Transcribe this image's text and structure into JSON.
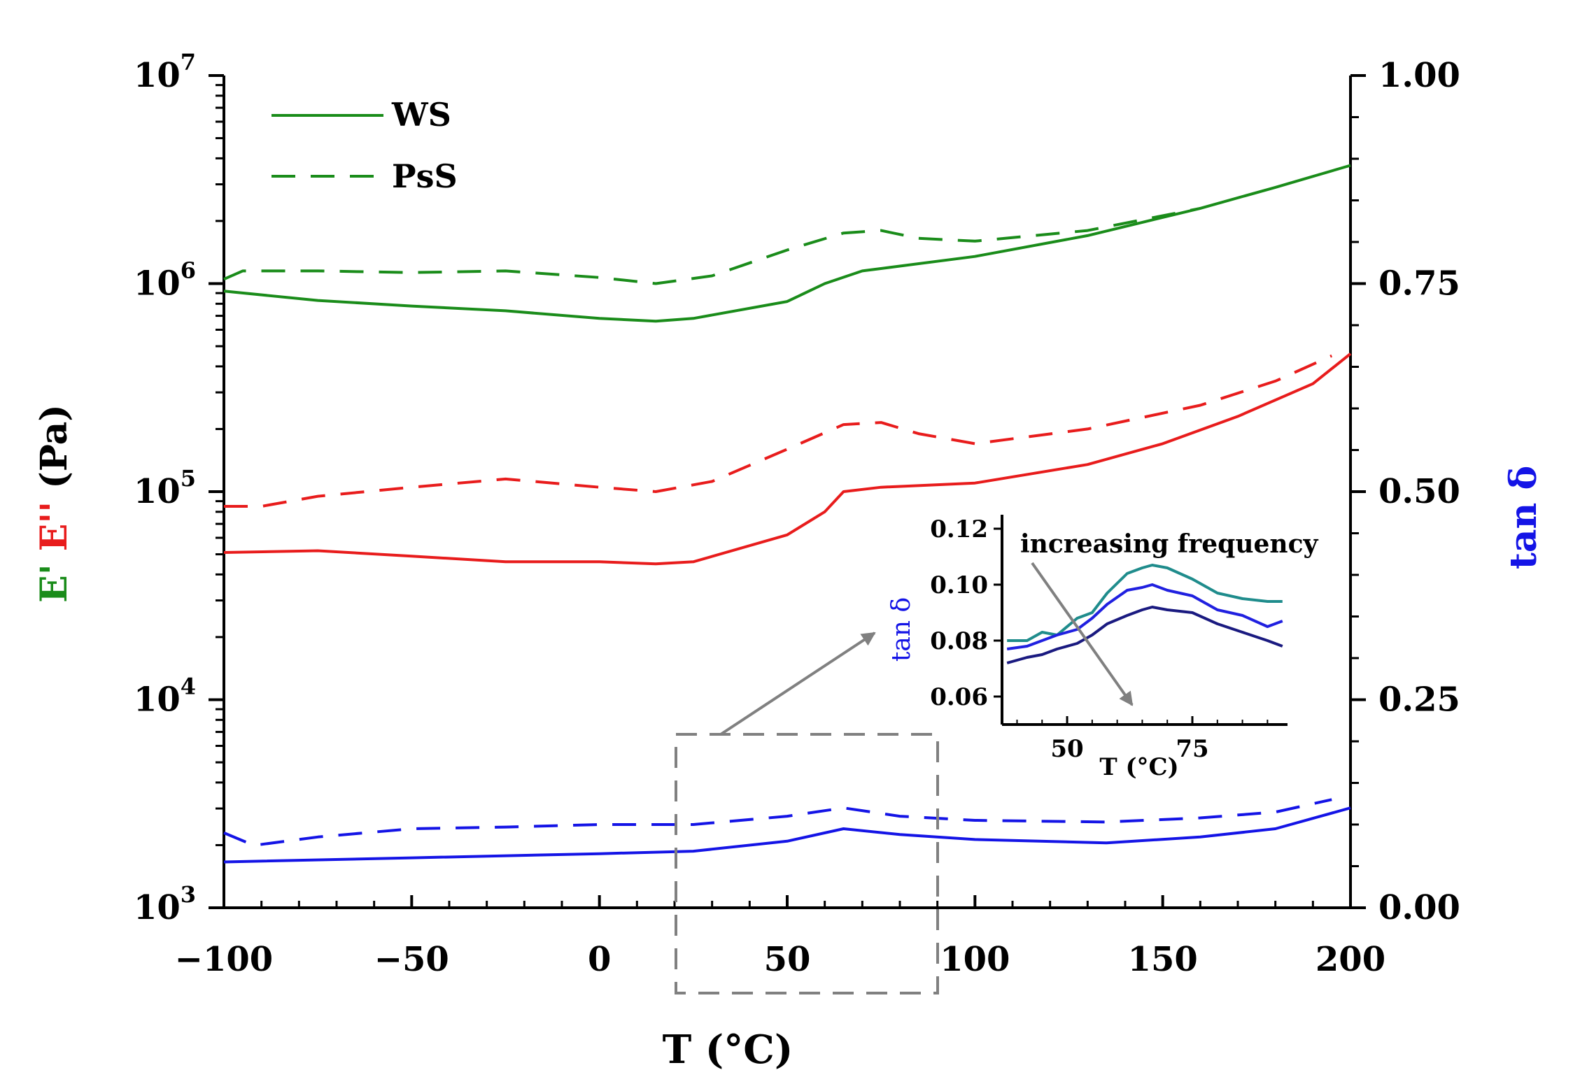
{
  "chart_data": [
    {
      "type": "line",
      "title": "",
      "xlabel": "T (°C)",
      "ylabel_left_parts": [
        {
          "text": "E'",
          "color": "#1a8c1a"
        },
        {
          "text": "E''",
          "color": "#e81c1c"
        },
        {
          "text": "(Pa)",
          "color": "#000000"
        }
      ],
      "ylabel_right": "tan δ",
      "xlim": [
        -100,
        200
      ],
      "xticks": [
        "−100",
        "−50",
        "0",
        "50",
        "100",
        "150",
        "200"
      ],
      "xtick_values": [
        -100,
        -50,
        0,
        50,
        100,
        150,
        200
      ],
      "ylim_left_log10": [
        3,
        7
      ],
      "yticks_left": [
        {
          "base": "10",
          "exp": "3",
          "log": 3
        },
        {
          "base": "10",
          "exp": "4",
          "log": 4
        },
        {
          "base": "10",
          "exp": "5",
          "log": 5
        },
        {
          "base": "10",
          "exp": "6",
          "log": 6
        },
        {
          "base": "10",
          "exp": "7",
          "log": 7
        }
      ],
      "ylim_right": [
        0,
        1
      ],
      "yticks_right": [
        "0.00",
        "0.25",
        "0.50",
        "0.75",
        "1.00"
      ],
      "ytick_right_values": [
        0,
        0.25,
        0.5,
        0.75,
        1.0
      ],
      "legend": [
        {
          "label": "WS",
          "style": "solid",
          "color": "#1a8c1a"
        },
        {
          "label": "PsS",
          "style": "dashed",
          "color": "#1a8c1a"
        }
      ],
      "legend_position": "top-left",
      "series": [
        {
          "name": "E' WS",
          "axis": "left",
          "color": "#1a8c1a",
          "style": "solid",
          "x": [
            -100,
            -75,
            -50,
            -25,
            0,
            15,
            25,
            50,
            60,
            70,
            100,
            130,
            160,
            180,
            200
          ],
          "y": [
            920000,
            830000,
            780000,
            740000,
            680000,
            660000,
            680000,
            820000,
            1000000,
            1150000,
            1350000,
            1700000,
            2300000,
            2900000,
            3700000
          ]
        },
        {
          "name": "E' PsS",
          "axis": "left",
          "color": "#1a8c1a",
          "style": "dashed",
          "x": [
            -100,
            -95,
            -75,
            -50,
            -25,
            0,
            15,
            30,
            50,
            65,
            75,
            85,
            100,
            130,
            160
          ],
          "y": [
            1050000,
            1150000,
            1150000,
            1130000,
            1150000,
            1070000,
            1000000,
            1090000,
            1450000,
            1750000,
            1800000,
            1650000,
            1600000,
            1800000,
            2300000
          ]
        },
        {
          "name": "E'' WS",
          "axis": "left",
          "color": "#e81c1c",
          "style": "solid",
          "x": [
            -100,
            -75,
            -50,
            -25,
            0,
            15,
            25,
            50,
            60,
            65,
            75,
            100,
            130,
            150,
            170,
            190,
            200
          ],
          "y": [
            51000,
            52000,
            49000,
            46000,
            46000,
            45000,
            46000,
            62000,
            80000,
            100000,
            105000,
            110000,
            135000,
            170000,
            230000,
            330000,
            460000
          ]
        },
        {
          "name": "E'' PsS",
          "axis": "left",
          "color": "#e81c1c",
          "style": "dashed",
          "x": [
            -100,
            -90,
            -75,
            -50,
            -25,
            0,
            15,
            30,
            50,
            65,
            75,
            85,
            100,
            130,
            160,
            180,
            195
          ],
          "y": [
            85000,
            85000,
            95000,
            105000,
            115000,
            105000,
            100000,
            112000,
            160000,
            210000,
            215000,
            190000,
            170000,
            200000,
            260000,
            340000,
            450000
          ]
        },
        {
          "name": "tan δ WS",
          "axis": "right",
          "color": "#1414e6",
          "style": "solid",
          "x": [
            -100,
            -50,
            0,
            25,
            50,
            65,
            80,
            100,
            135,
            160,
            180,
            200
          ],
          "y": [
            0.055,
            0.06,
            0.065,
            0.068,
            0.08,
            0.095,
            0.088,
            0.082,
            0.078,
            0.085,
            0.095,
            0.12
          ]
        },
        {
          "name": "tan δ PsS",
          "axis": "right",
          "color": "#1414e6",
          "style": "dashed",
          "x": [
            -100,
            -92,
            -75,
            -50,
            -25,
            0,
            25,
            50,
            65,
            80,
            100,
            135,
            160,
            180,
            195
          ],
          "y": [
            0.09,
            0.075,
            0.085,
            0.095,
            0.097,
            0.1,
            0.1,
            0.11,
            0.12,
            0.11,
            0.105,
            0.103,
            0.108,
            0.115,
            0.13
          ]
        }
      ],
      "highlight_region_label": "",
      "highlight_x_range": [
        20,
        90
      ]
    },
    {
      "type": "line",
      "title": "",
      "xlabel": "T (°C)",
      "ylabel": "tan δ",
      "annotation": "increasing frequency",
      "xlim": [
        37,
        94
      ],
      "xticks": [
        "50",
        "75"
      ],
      "xtick_values": [
        50,
        75
      ],
      "ylim": [
        0.05,
        0.125
      ],
      "yticks": [
        "0.06",
        "0.08",
        "0.10",
        "0.12"
      ],
      "ytick_values": [
        0.06,
        0.08,
        0.1,
        0.12
      ],
      "series": [
        {
          "name": "lowest frequency",
          "color": "#1f8c8c",
          "x": [
            38,
            42,
            45,
            48,
            52,
            55,
            58,
            62,
            65,
            67,
            70,
            75,
            80,
            85,
            90,
            93
          ],
          "y": [
            0.08,
            0.08,
            0.083,
            0.082,
            0.088,
            0.09,
            0.097,
            0.104,
            0.106,
            0.107,
            0.106,
            0.102,
            0.097,
            0.095,
            0.094,
            0.094
          ]
        },
        {
          "name": "middle frequency",
          "color": "#2020e0",
          "x": [
            38,
            42,
            45,
            48,
            52,
            55,
            58,
            62,
            65,
            67,
            70,
            75,
            80,
            85,
            90,
            93
          ],
          "y": [
            0.077,
            0.078,
            0.08,
            0.082,
            0.084,
            0.088,
            0.093,
            0.098,
            0.099,
            0.1,
            0.098,
            0.096,
            0.091,
            0.089,
            0.085,
            0.087
          ]
        },
        {
          "name": "highest frequency",
          "color": "#1a1a80",
          "x": [
            38,
            42,
            45,
            48,
            52,
            55,
            58,
            62,
            65,
            67,
            70,
            75,
            80,
            85,
            90,
            93
          ],
          "y": [
            0.072,
            0.074,
            0.075,
            0.077,
            0.079,
            0.082,
            0.086,
            0.089,
            0.091,
            0.092,
            0.091,
            0.09,
            0.086,
            0.083,
            0.08,
            0.078
          ]
        }
      ]
    }
  ]
}
